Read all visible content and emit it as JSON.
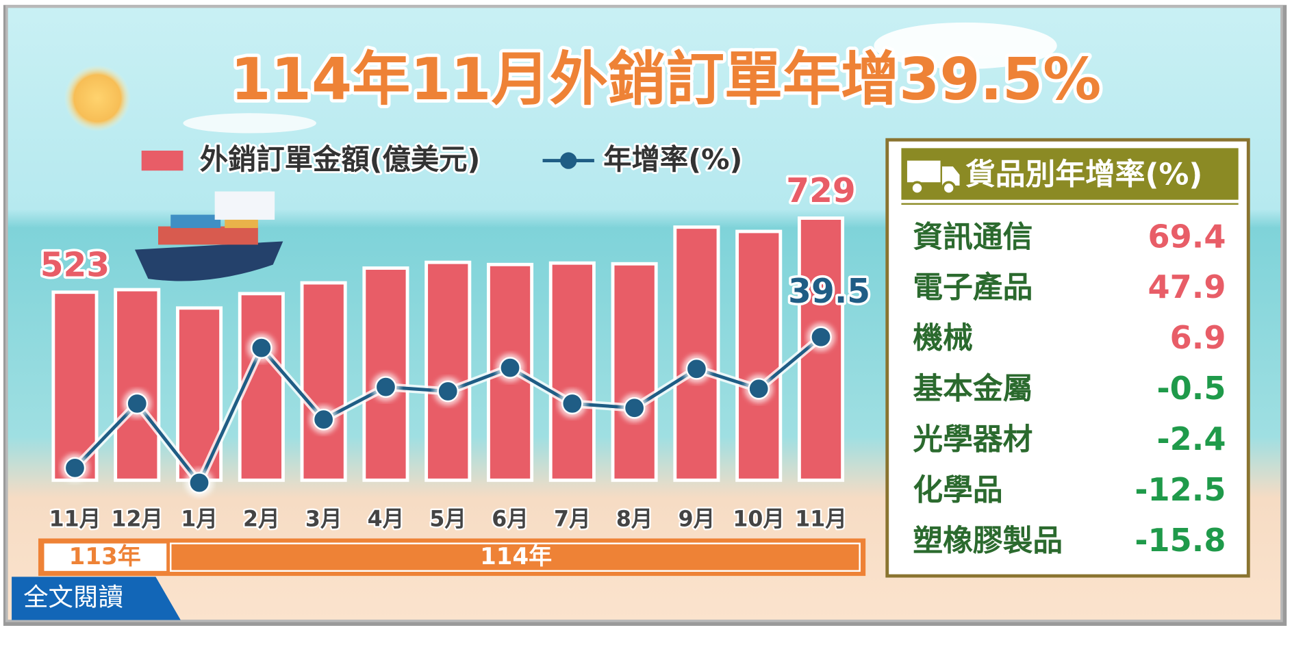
{
  "chart_data": {
    "type": "combo",
    "title": "114年11月外銷訂單年增39.5%",
    "categories": [
      "11月",
      "12月",
      "1月",
      "2月",
      "3月",
      "4月",
      "5月",
      "6月",
      "7月",
      "8月",
      "9月",
      "10月",
      "11月"
    ],
    "periods": [
      "113年",
      "114年"
    ],
    "series": [
      {
        "name": "外銷訂單金額(億美元)",
        "type": "bar",
        "color": "#e85d67",
        "values": [
          523,
          530,
          479,
          519,
          549,
          590,
          606,
          600,
          604,
          602,
          704,
          692,
          729
        ],
        "value_labels": [
          "523",
          null,
          null,
          null,
          null,
          null,
          null,
          null,
          null,
          null,
          null,
          null,
          "729"
        ]
      },
      {
        "name": "年增率(%)",
        "type": "line",
        "axis": "y2",
        "color": "#1f5d85",
        "values": [
          3.3,
          21.1,
          -0.8,
          36.5,
          16.7,
          25.7,
          24.5,
          31.0,
          21.1,
          19.9,
          30.7,
          25.2,
          39.5
        ],
        "value_labels": [
          null,
          null,
          null,
          null,
          null,
          null,
          null,
          null,
          null,
          null,
          null,
          null,
          "39.5"
        ]
      }
    ],
    "ylim": [
      0,
      760
    ],
    "y2lim": [
      -0.1,
      75.5
    ]
  },
  "side_table": {
    "title": "貨品別年增率(%)",
    "rows": [
      [
        "資訊通信",
        69.4
      ],
      [
        "電子產品",
        47.9
      ],
      [
        "機械",
        6.9
      ],
      [
        "基本金屬",
        -0.5
      ],
      [
        "光學器材",
        -2.4
      ],
      [
        "化學品",
        -12.5
      ],
      [
        "塑橡膠製品",
        -15.8
      ]
    ]
  },
  "button": "全文閱讀"
}
